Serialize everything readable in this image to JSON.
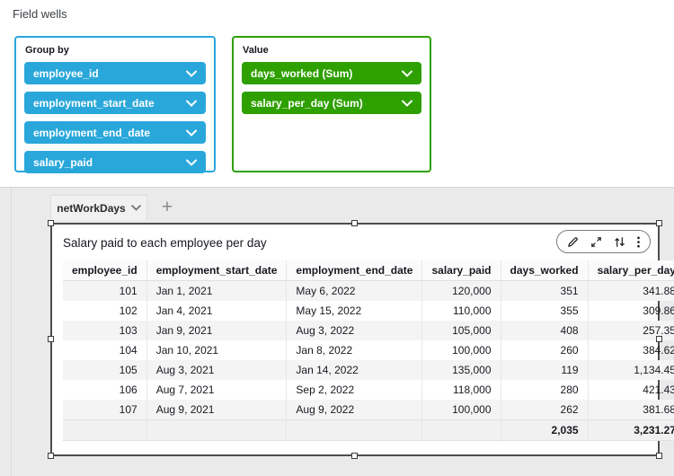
{
  "colors": {
    "dimension_blue": "#2aa7da",
    "measure_green": "#2ea000",
    "selection_frame": "#4d4d4d",
    "workspace_gray": "#eaeaea"
  },
  "field_wells": {
    "title": "Field wells",
    "group_by": {
      "label": "Group by",
      "pills": [
        "employee_id",
        "employment_start_date",
        "employment_end_date",
        "salary_paid"
      ]
    },
    "value": {
      "label": "Value",
      "pills": [
        "days_worked (Sum)",
        "salary_per_day (Sum)"
      ]
    }
  },
  "sheet_tabs": {
    "active_tab": "netWorkDays",
    "add_tab_label": "+"
  },
  "visual": {
    "title": "Salary paid to each employee per day",
    "toolbar_icons": [
      "edit",
      "maximize",
      "swap",
      "menu"
    ],
    "table": {
      "columns": [
        "employee_id",
        "employment_start_date",
        "employment_end_date",
        "salary_paid",
        "days_worked",
        "salary_per_day"
      ],
      "rows": [
        [
          "101",
          "Jan 1, 2021",
          "May 6, 2022",
          "120,000",
          "351",
          "341.88"
        ],
        [
          "102",
          "Jan 4, 2021",
          "May 15, 2022",
          "110,000",
          "355",
          "309.86"
        ],
        [
          "103",
          "Jan 9, 2021",
          "Aug 3, 2022",
          "105,000",
          "408",
          "257.35"
        ],
        [
          "104",
          "Jan 10, 2021",
          "Jan 8, 2022",
          "100,000",
          "260",
          "384.62"
        ],
        [
          "105",
          "Aug 3, 2021",
          "Jan 14, 2022",
          "135,000",
          "119",
          "1,134.45"
        ],
        [
          "106",
          "Aug 7, 2021",
          "Sep 2, 2022",
          "118,000",
          "280",
          "421.43"
        ],
        [
          "107",
          "Aug 9, 2021",
          "Aug 9, 2022",
          "100,000",
          "262",
          "381.68"
        ]
      ],
      "total_row": [
        "",
        "",
        "",
        "",
        "2,035",
        "3,231.27"
      ]
    }
  }
}
